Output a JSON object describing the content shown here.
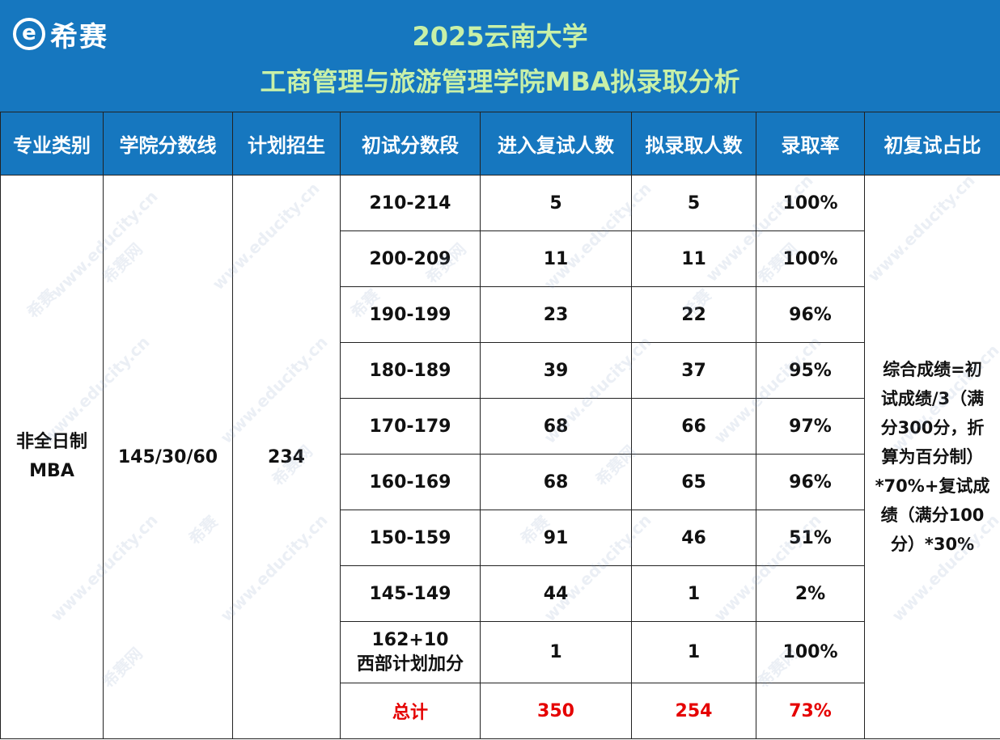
{
  "header": {
    "logo_glyph": "e",
    "logo_text": "希赛",
    "title_line1": "2025云南大学",
    "title_line2": "工商管理与旅游管理学院MBA拟录取分析"
  },
  "table": {
    "columns": [
      "专业类别",
      "学院分数线",
      "计划招生",
      "初试分数段",
      "进入复试人数",
      "拟录取人数",
      "录取率",
      "初复试占比"
    ],
    "category_lines": [
      "非全日制",
      "MBA"
    ],
    "cutoff": "145/30/60",
    "plan": "234",
    "rows": [
      {
        "range": "210-214",
        "retest": "5",
        "admit": "5",
        "rate": "100%"
      },
      {
        "range": "200-209",
        "retest": "11",
        "admit": "11",
        "rate": "100%"
      },
      {
        "range": "190-199",
        "retest": "23",
        "admit": "22",
        "rate": "96%"
      },
      {
        "range": "180-189",
        "retest": "39",
        "admit": "37",
        "rate": "95%"
      },
      {
        "range": "170-179",
        "retest": "68",
        "admit": "66",
        "rate": "97%"
      },
      {
        "range": "160-169",
        "retest": "68",
        "admit": "65",
        "rate": "96%"
      },
      {
        "range": "150-159",
        "retest": "91",
        "admit": "46",
        "rate": "51%"
      },
      {
        "range": "145-149",
        "retest": "44",
        "admit": "1",
        "rate": "2%"
      }
    ],
    "special_row": {
      "range_line1": "162+10",
      "range_line2": "西部计划加分",
      "retest": "1",
      "admit": "1",
      "rate": "100%"
    },
    "total_row": {
      "label": "总计",
      "retest": "350",
      "admit": "254",
      "rate": "73%"
    },
    "ratio_note_lines": [
      "综合成绩=初",
      "试成绩/3（满",
      "分300分，折",
      "算为百分制）",
      "*70%+复试成",
      "绩（满分100",
      "分）*30%"
    ]
  },
  "watermark": {
    "site": "www.educity.cn",
    "brand": "希赛网",
    "logo": "希赛"
  },
  "colors": {
    "header_bg": "#1677bf",
    "title_text": "#c8f0a8",
    "total_text": "#e50000"
  }
}
